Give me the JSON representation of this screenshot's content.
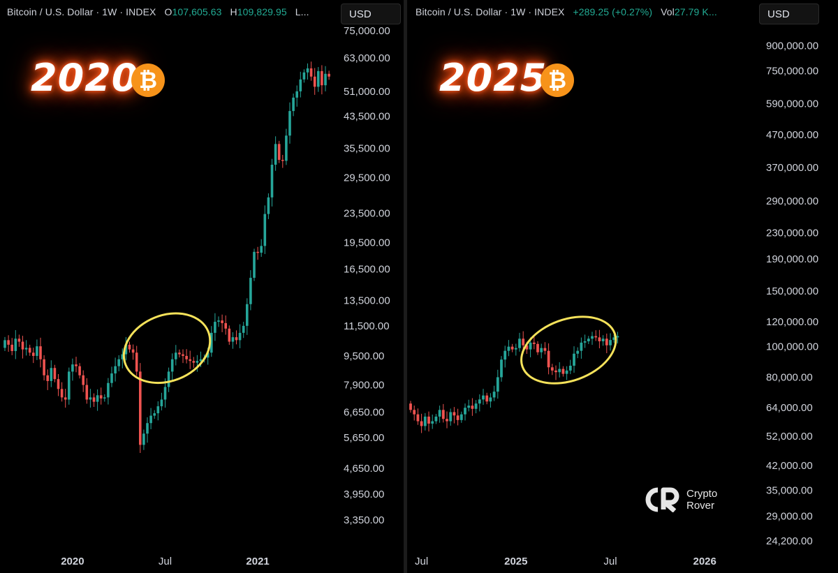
{
  "left_panel": {
    "header": {
      "symbol": "Bitcoin / U.S. Dollar · 1W · INDEX",
      "o_label": "O",
      "o_value": "107,605.63",
      "h_label": "H",
      "h_value": "109,829.95",
      "trail": "L..."
    },
    "currency": "USD",
    "year_title": "2020",
    "btc_glyph": "₿"
  },
  "right_panel": {
    "header": {
      "symbol": "Bitcoin / U.S. Dollar · 1W · INDEX",
      "change": "+289.25 (+0.27%)",
      "vol_label": "Vol",
      "vol_value": "27.79 K..."
    },
    "currency": "USD",
    "year_title": "2025",
    "btc_glyph": "₿"
  },
  "brand": {
    "line1": "Crypto",
    "line2": "Rover"
  },
  "colors": {
    "up": "#26a69a",
    "down": "#ef5350",
    "ellipse": "#f5e25a",
    "glow": "#ff5a1f",
    "btc": "#f7931a"
  },
  "chart_data": [
    {
      "type": "candlestick",
      "scale": "log",
      "ylim": [
        3000,
        78000
      ],
      "y_ticks": [
        75000,
        63000,
        51000,
        43500,
        35500,
        29500,
        23500,
        19500,
        16500,
        13500,
        11500,
        9500,
        7900,
        6650,
        5650,
        4650,
        3950,
        3350
      ],
      "y_tick_labels": [
        "75,000.00",
        "63,000.00",
        "51,000.00",
        "43,500.00",
        "35,500.00",
        "29,500.00",
        "23,500.00",
        "19,500.00",
        "16,500.00",
        "13,500.00",
        "11,500.00",
        "9,500.00",
        "7,900.00",
        "6,650.00",
        "5,650.00",
        "4,650.00",
        "3,950.00",
        "3,350.00"
      ],
      "x_labels": [
        {
          "text": "2020",
          "at": 19,
          "bold": true
        },
        {
          "text": "Jul",
          "at": 45,
          "bold": false
        },
        {
          "text": "2021",
          "at": 71,
          "bold": true
        }
      ],
      "annotation": {
        "kind": "ellipse",
        "from_candle": 33,
        "to_candle": 58,
        "low": 8100,
        "high": 12300
      },
      "close": [
        10500,
        10200,
        9800,
        10600,
        10400,
        9900,
        10000,
        9700,
        9500,
        10100,
        9300,
        8400,
        8100,
        8800,
        8200,
        7700,
        7300,
        7200,
        8600,
        9000,
        8900,
        8400,
        7900,
        7200,
        7300,
        7100,
        7400,
        7250,
        7300,
        8000,
        8500,
        8900,
        9300,
        9600,
        10200,
        9900,
        9700,
        8600,
        5400,
        5800,
        6200,
        6500,
        6600,
        6900,
        7200,
        7800,
        8600,
        9300,
        9700,
        9600,
        9500,
        9300,
        9200,
        9100,
        9200,
        9300,
        9400,
        9700,
        11000,
        11800,
        11900,
        11700,
        11300,
        10400,
        10700,
        10500,
        11000,
        11500,
        13200,
        15600,
        18400,
        18300,
        19100,
        23400,
        26000,
        32000,
        36500,
        33000,
        32800,
        38500,
        45000,
        49000,
        51000,
        55000,
        57500,
        59000,
        56000,
        52500,
        58000,
        53000,
        57000,
        56000
      ],
      "first_open": 10000
    },
    {
      "type": "candlestick",
      "scale": "log",
      "ylim": [
        23000,
        1000000
      ],
      "y_ticks": [
        900000,
        750000,
        590000,
        470000,
        370000,
        290000,
        230000,
        190000,
        150000,
        120000,
        100000,
        80000,
        64000,
        52000,
        42000,
        35000,
        29000,
        24200
      ],
      "y_tick_labels": [
        "900,000.00",
        "750,000.00",
        "590,000.00",
        "470,000.00",
        "370,000.00",
        "290,000.00",
        "230,000.00",
        "190,000.00",
        "150,000.00",
        "120,000.00",
        "100,000.00",
        "80,000.00",
        "64,000.00",
        "52,000.00",
        "42,000.00",
        "35,000.00",
        "29,000.00",
        "24,200.00"
      ],
      "x_labels": [
        {
          "text": "Jul",
          "at": 3,
          "bold": false
        },
        {
          "text": "2025",
          "at": 29,
          "bold": true
        },
        {
          "text": "Jul",
          "at": 55,
          "bold": false
        },
        {
          "text": "2026",
          "at": 81,
          "bold": true
        }
      ],
      "annotation": {
        "kind": "ellipse",
        "from_candle": 30,
        "to_candle": 57,
        "low": 78000,
        "high": 122000
      },
      "close": [
        63000,
        61000,
        58000,
        56000,
        60000,
        57000,
        58000,
        60000,
        63000,
        59000,
        58000,
        62000,
        60500,
        58500,
        61000,
        64000,
        65000,
        63500,
        66000,
        68000,
        70000,
        67000,
        69000,
        72000,
        80000,
        91000,
        97000,
        100000,
        98000,
        99000,
        106000,
        101000,
        98000,
        103000,
        102000,
        96000,
        99000,
        97000,
        86000,
        84000,
        83000,
        85000,
        82000,
        84000,
        87000,
        95000,
        97000,
        103000,
        104000,
        106000,
        108000,
        107000,
        104000,
        106000,
        101000,
        105000,
        107000,
        108000
      ],
      "first_open": 66000
    }
  ]
}
